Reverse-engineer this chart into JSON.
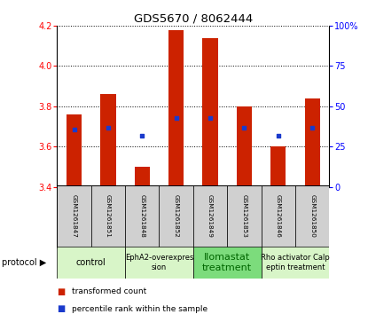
{
  "title": "GDS5670 / 8062444",
  "samples": [
    "GSM1261847",
    "GSM1261851",
    "GSM1261848",
    "GSM1261852",
    "GSM1261849",
    "GSM1261853",
    "GSM1261846",
    "GSM1261850"
  ],
  "bar_bottoms": [
    3.4,
    3.4,
    3.4,
    3.4,
    3.4,
    3.4,
    3.4,
    3.4
  ],
  "bar_tops": [
    3.76,
    3.86,
    3.5,
    4.18,
    4.14,
    3.8,
    3.6,
    3.84
  ],
  "percentile_values": [
    3.685,
    3.695,
    3.655,
    3.74,
    3.74,
    3.695,
    3.655,
    3.695
  ],
  "ylim_left": [
    3.4,
    4.2
  ],
  "ylim_right": [
    0,
    100
  ],
  "yticks_left": [
    3.4,
    3.6,
    3.8,
    4.0,
    4.2
  ],
  "yticks_right": [
    0,
    25,
    50,
    75,
    100
  ],
  "ytick_labels_right": [
    "0",
    "25",
    "50",
    "75",
    "100%"
  ],
  "bar_color": "#cc2200",
  "dot_color": "#1a3acc",
  "protocols": [
    {
      "label": "control",
      "start": 0,
      "end": 2,
      "color": "#d8f5c8",
      "text_color": "#000000",
      "fontsize": 7
    },
    {
      "label": "EphA2-overexpres\nsion",
      "start": 2,
      "end": 4,
      "color": "#d8f5c8",
      "text_color": "#000000",
      "fontsize": 6
    },
    {
      "label": "Ilomastat\ntreatment",
      "start": 4,
      "end": 6,
      "color": "#7cdc7c",
      "text_color": "#006600",
      "fontsize": 8
    },
    {
      "label": "Rho activator Calp\neptin treatment",
      "start": 6,
      "end": 8,
      "color": "#d8f5c8",
      "text_color": "#000000",
      "fontsize": 6
    }
  ],
  "legend_items": [
    "transformed count",
    "percentile rank within the sample"
  ],
  "legend_colors": [
    "#cc2200",
    "#1a3acc"
  ],
  "protocol_label": "protocol",
  "bg_color": "#ffffff",
  "sample_cell_color": "#d0d0d0",
  "bar_width": 0.45
}
